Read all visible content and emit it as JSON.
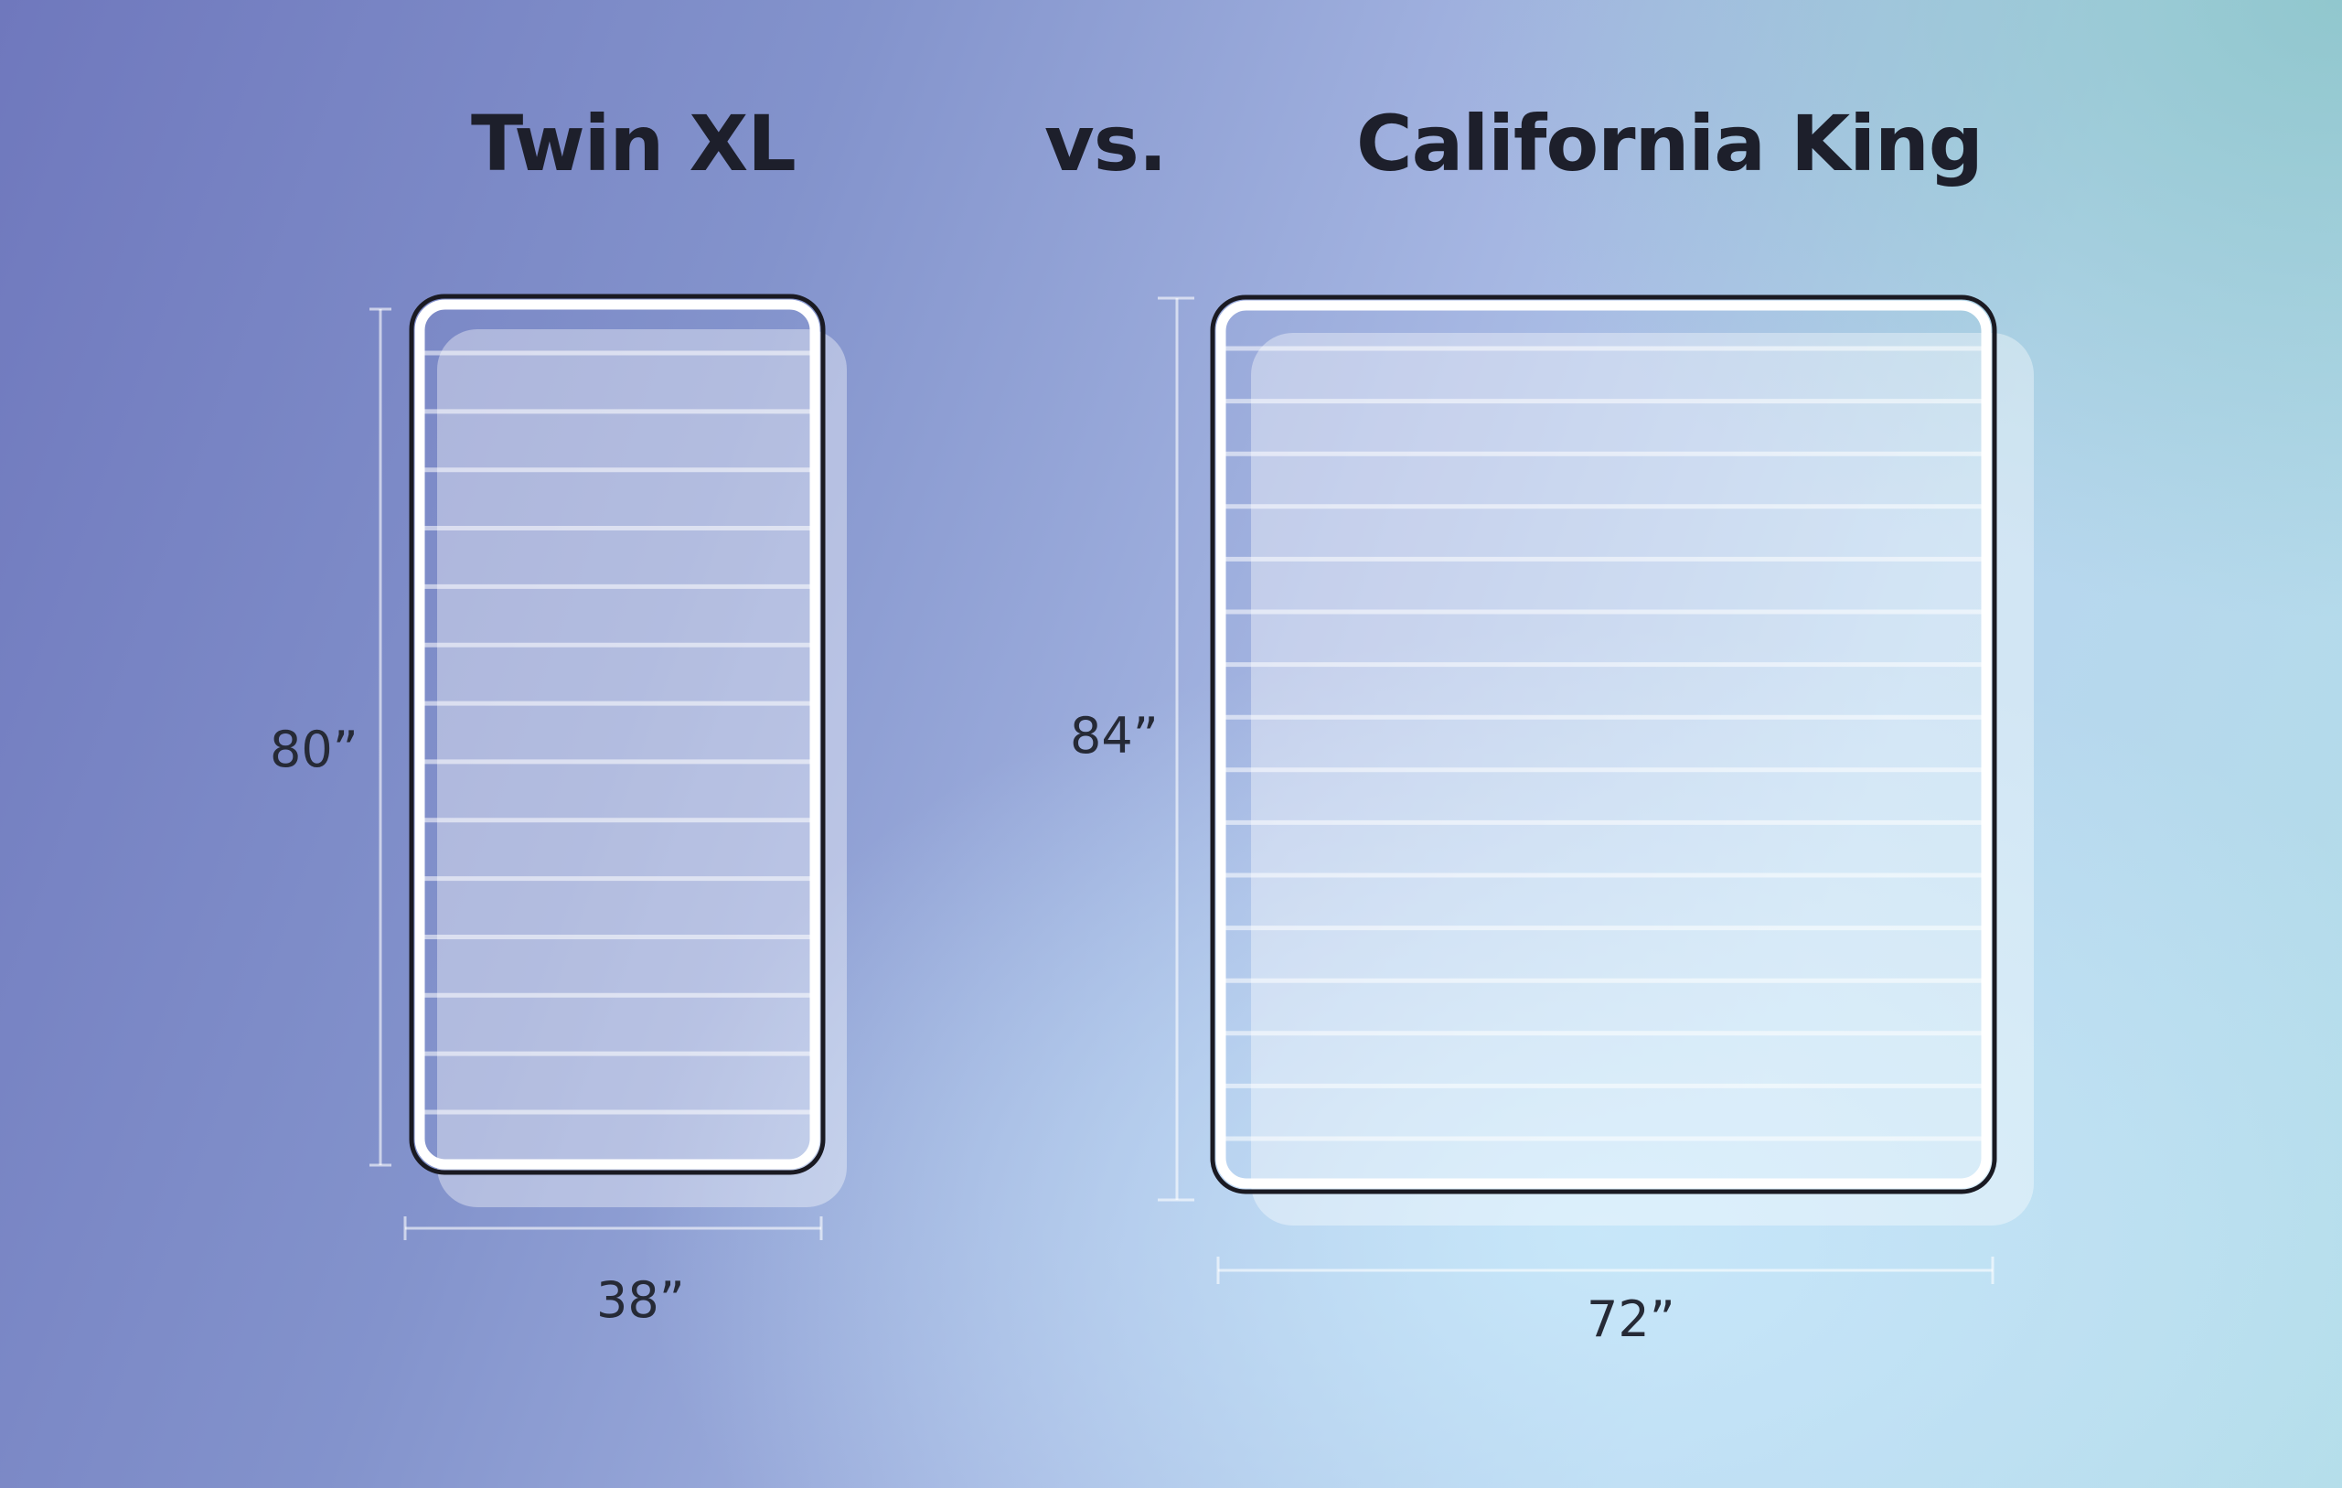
{
  "titles": {
    "left": "Twin XL",
    "separator": "vs.",
    "right": "California King"
  },
  "twin_xl": {
    "height_label": "80”",
    "width_label": "38”",
    "width_in": 38,
    "length_in": 80,
    "stripe_count": 14
  },
  "california_king": {
    "height_label": "84”",
    "width_label": "72”",
    "width_in": 72,
    "length_in": 84,
    "stripe_count": 16
  },
  "colors": {
    "title": "#1d1f2b",
    "label": "#262a36",
    "outline": "#1a1a22",
    "stripe": "#ffffff"
  }
}
